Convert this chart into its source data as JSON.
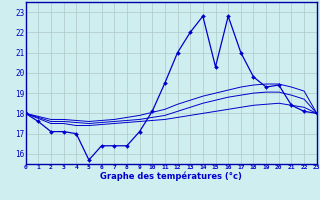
{
  "xlabel": "Graphe des températures (°c)",
  "background_color": "#ceeef0",
  "plot_bg_color": "#ceeef0",
  "grid_color": "#b0c8c8",
  "line_color": "#0000cc",
  "spine_color": "#0000aa",
  "hours": [
    0,
    1,
    2,
    3,
    4,
    5,
    6,
    7,
    8,
    9,
    10,
    11,
    12,
    13,
    14,
    15,
    16,
    17,
    18,
    19,
    20,
    21,
    22,
    23
  ],
  "temp_main": [
    18.0,
    17.6,
    17.1,
    17.1,
    17.0,
    15.7,
    16.4,
    16.4,
    16.4,
    17.1,
    18.1,
    19.5,
    21.0,
    22.0,
    22.8,
    20.3,
    22.8,
    21.0,
    19.8,
    19.3,
    19.4,
    18.4,
    18.1,
    18.0
  ],
  "temp_line2": [
    18.0,
    17.75,
    17.5,
    17.5,
    17.4,
    17.4,
    17.45,
    17.5,
    17.55,
    17.6,
    17.65,
    17.7,
    17.8,
    17.9,
    18.0,
    18.1,
    18.2,
    18.3,
    18.4,
    18.45,
    18.5,
    18.4,
    18.3,
    18.0
  ],
  "temp_line3": [
    18.0,
    17.8,
    17.6,
    17.6,
    17.55,
    17.5,
    17.55,
    17.6,
    17.65,
    17.7,
    17.8,
    17.9,
    18.1,
    18.3,
    18.5,
    18.65,
    18.8,
    18.9,
    19.0,
    19.05,
    19.05,
    18.9,
    18.7,
    18.0
  ],
  "temp_line4": [
    18.0,
    17.85,
    17.7,
    17.7,
    17.65,
    17.6,
    17.65,
    17.7,
    17.8,
    17.9,
    18.05,
    18.2,
    18.45,
    18.65,
    18.85,
    19.0,
    19.15,
    19.3,
    19.4,
    19.45,
    19.45,
    19.3,
    19.1,
    18.0
  ],
  "ylim": [
    15.5,
    23.5
  ],
  "yticks": [
    16,
    17,
    18,
    19,
    20,
    21,
    22,
    23
  ],
  "figsize": [
    3.2,
    2.0
  ],
  "dpi": 100
}
